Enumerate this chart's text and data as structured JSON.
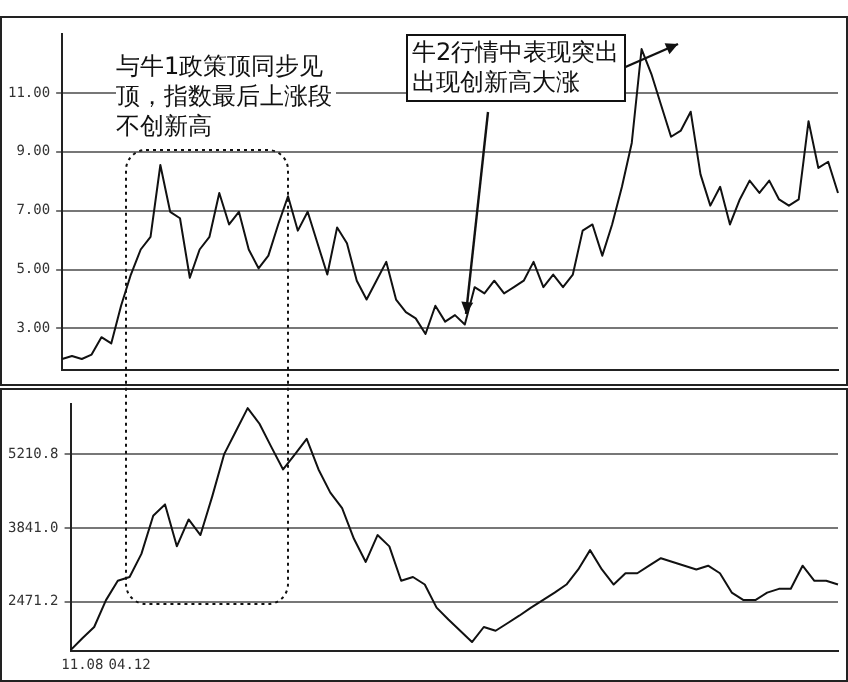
{
  "chart_data": [
    {
      "type": "line",
      "categories": [
        null,
        null,
        null,
        null,
        null,
        null,
        null,
        null,
        null,
        null,
        null,
        null,
        null,
        null,
        null,
        null,
        null,
        null,
        null,
        null,
        null,
        null,
        null,
        null,
        null,
        null,
        null,
        null,
        null,
        null,
        null,
        null,
        null,
        null,
        null,
        null,
        null,
        null,
        null,
        null,
        null,
        null,
        null,
        null,
        null,
        null,
        null,
        null,
        null,
        null,
        null,
        null,
        null,
        null,
        null,
        null,
        null,
        null,
        null,
        null,
        null,
        null,
        null,
        null,
        null,
        null,
        null,
        null,
        null,
        null,
        null,
        null,
        null,
        null,
        null,
        null,
        null,
        null,
        null,
        null
      ],
      "values": [
        1.96,
        2.06,
        1.96,
        2.11,
        2.7,
        2.49,
        3.77,
        4.83,
        5.68,
        6.11,
        8.55,
        6.96,
        6.74,
        4.72,
        5.68,
        6.11,
        7.6,
        6.53,
        6.96,
        5.68,
        5.04,
        5.47,
        6.53,
        7.49,
        6.32,
        6.96,
        5.89,
        4.83,
        6.43,
        5.89,
        4.62,
        3.98,
        4.62,
        5.26,
        3.98,
        3.55,
        3.34,
        2.81,
        3.77,
        3.23,
        3.45,
        3.13,
        4.4,
        4.19,
        4.62,
        4.19,
        4.4,
        4.62,
        5.26,
        4.4,
        4.83,
        4.4,
        4.83,
        6.32,
        6.53,
        5.47,
        6.53,
        7.81,
        9.3,
        12.49,
        11.64,
        10.57,
        9.51,
        9.72,
        10.36,
        8.23,
        7.17,
        7.81,
        6.53,
        7.38,
        8.02,
        7.6,
        8.02,
        7.38,
        7.17,
        7.38,
        10.04,
        8.45,
        8.66,
        7.6
      ],
      "color": "#111111",
      "ylim": [
        1.6,
        13
      ],
      "yticks": [
        {
          "value": 3,
          "label": "3.00"
        },
        {
          "value": 5,
          "label": "5.00"
        },
        {
          "value": 7,
          "label": "7.00"
        },
        {
          "value": 9,
          "label": "9.00"
        },
        {
          "value": 11,
          "label": "11.00"
        }
      ],
      "grid": "y",
      "tick_labels": "y",
      "marker": "none",
      "line_style": "solid",
      "annotations": [
        "与牛1政策顶同步见顶，指数最后上涨段不创新高",
        "牛2行情中表现突出出现创新高大涨"
      ]
    },
    {
      "type": "line",
      "categories": [
        null,
        "11.08",
        null,
        null,
        null,
        "04.12",
        null,
        null,
        null,
        null,
        null,
        null,
        null,
        null,
        null,
        null,
        null,
        null,
        null,
        null,
        null,
        null,
        null,
        null,
        null,
        null,
        null,
        null,
        null,
        null,
        null,
        null,
        null,
        null,
        null,
        null,
        null,
        null,
        null,
        null,
        null,
        null,
        null,
        null,
        null,
        null,
        null,
        null,
        null,
        null,
        null,
        null,
        null,
        null,
        null,
        null,
        null,
        null,
        null,
        null,
        null,
        null,
        null,
        null,
        null,
        null
      ],
      "values": [
        1570,
        1790,
        2000,
        2500,
        2860,
        2930,
        3360,
        4070,
        4280,
        3500,
        4000,
        3710,
        4430,
        5210,
        5640,
        6070,
        5780,
        5350,
        4930,
        5210,
        5500,
        4930,
        4500,
        4210,
        3640,
        3210,
        3710,
        3500,
        2860,
        2930,
        2790,
        2360,
        2140,
        1930,
        1720,
        2000,
        1930,
        2070,
        2210,
        2360,
        2500,
        2640,
        2790,
        3070,
        3430,
        3070,
        2790,
        3000,
        3000,
        3140,
        3280,
        3210,
        3140,
        3070,
        3140,
        3000,
        2640,
        2500,
        2500,
        2640,
        2710,
        2710,
        3140,
        2860,
        2860,
        2790
      ],
      "color": "#111111",
      "ylim": [
        1550,
        6140
      ],
      "yticks": [
        2471.2,
        {
          "value": 3841,
          "label": "3841.0"
        },
        5210.8
      ],
      "grid": "y",
      "marker": "none",
      "line_style": "solid"
    }
  ]
}
